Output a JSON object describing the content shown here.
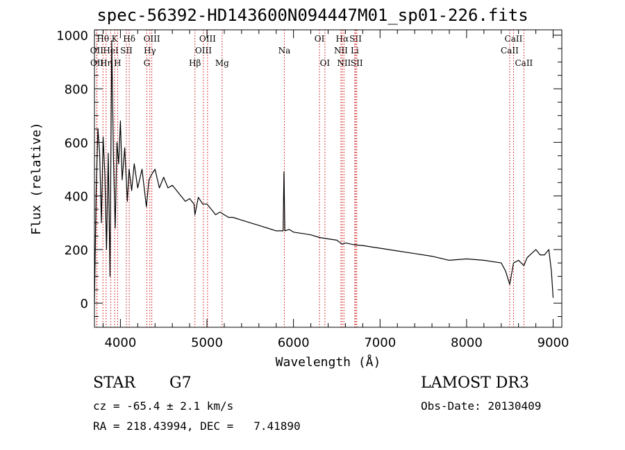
{
  "chart_data": {
    "type": "line",
    "title": "spec-56392-HD143600N094447M01_sp01-226.fits",
    "xlabel": "Wavelength (Å)",
    "ylabel": "Flux (relative)",
    "xlim": [
      3700,
      9100
    ],
    "ylim": [
      -90,
      1020
    ],
    "xticks": [
      4000,
      5000,
      6000,
      7000,
      8000,
      9000
    ],
    "yticks": [
      0,
      200,
      400,
      600,
      800,
      1000
    ],
    "series": [
      {
        "name": "flux",
        "x": [
          3700,
          3720,
          3740,
          3760,
          3780,
          3800,
          3820,
          3840,
          3860,
          3880,
          3900,
          3920,
          3940,
          3960,
          3980,
          4000,
          4020,
          4050,
          4080,
          4100,
          4130,
          4160,
          4200,
          4250,
          4300,
          4330,
          4360,
          4400,
          4450,
          4500,
          4550,
          4600,
          4650,
          4700,
          4750,
          4800,
          4850,
          4861,
          4900,
          4950,
          5000,
          5050,
          5100,
          5150,
          5200,
          5250,
          5300,
          5400,
          5500,
          5600,
          5700,
          5800,
          5880,
          5890,
          5900,
          5950,
          6000,
          6100,
          6200,
          6300,
          6400,
          6500,
          6563,
          6600,
          6700,
          6800,
          6900,
          7000,
          7200,
          7400,
          7600,
          7800,
          8000,
          8200,
          8400,
          8450,
          8498,
          8542,
          8600,
          8662,
          8700,
          8800,
          8850,
          8900,
          8950,
          8980,
          9000
        ],
        "values": [
          0,
          420,
          650,
          560,
          300,
          620,
          480,
          200,
          560,
          100,
          980,
          540,
          280,
          600,
          520,
          680,
          460,
          580,
          380,
          500,
          420,
          520,
          430,
          500,
          360,
          460,
          480,
          500,
          430,
          470,
          430,
          440,
          420,
          400,
          380,
          390,
          370,
          330,
          395,
          370,
          370,
          350,
          330,
          340,
          330,
          320,
          320,
          310,
          300,
          290,
          280,
          270,
          270,
          490,
          270,
          275,
          265,
          260,
          255,
          245,
          240,
          235,
          220,
          225,
          218,
          215,
          210,
          205,
          195,
          185,
          175,
          160,
          165,
          160,
          150,
          120,
          70,
          150,
          160,
          140,
          170,
          200,
          180,
          180,
          200,
          120,
          20
        ]
      }
    ],
    "lines": [
      {
        "label": "Hθ",
        "x": 3798,
        "row": 1
      },
      {
        "label": "OII",
        "x": 3727,
        "row": 2
      },
      {
        "label": "OII",
        "x": 3729,
        "row": 3
      },
      {
        "label": "Hη",
        "x": 3835,
        "row": 3
      },
      {
        "label": "HeI",
        "x": 3889,
        "row": 2
      },
      {
        "label": "K",
        "x": 3934,
        "row": 1
      },
      {
        "label": "H",
        "x": 3968,
        "row": 3
      },
      {
        "label": "SII",
        "x": 4069,
        "row": 2
      },
      {
        "label": "Hδ",
        "x": 4102,
        "row": 1
      },
      {
        "label": "OIII",
        "x": 4363,
        "row": 1
      },
      {
        "label": "Hγ",
        "x": 4340,
        "row": 2
      },
      {
        "label": "G",
        "x": 4305,
        "row": 3
      },
      {
        "label": "Hβ",
        "x": 4861,
        "row": 3
      },
      {
        "label": "OIII",
        "x": 5007,
        "row": 1
      },
      {
        "label": "OIII",
        "x": 4959,
        "row": 2
      },
      {
        "label": "Mg",
        "x": 5175,
        "row": 3
      },
      {
        "label": "Na",
        "x": 5894,
        "row": 2
      },
      {
        "label": "OI",
        "x": 6300,
        "row": 1
      },
      {
        "label": "OI",
        "x": 6363,
        "row": 3
      },
      {
        "label": "Hα",
        "x": 6563,
        "row": 1
      },
      {
        "label": "NII",
        "x": 6548,
        "row": 2
      },
      {
        "label": "NII",
        "x": 6583,
        "row": 3
      },
      {
        "label": "SII",
        "x": 6717,
        "row": 1
      },
      {
        "label": "Li",
        "x": 6708,
        "row": 2
      },
      {
        "label": "SII",
        "x": 6731,
        "row": 3
      },
      {
        "label": "CaII",
        "x": 8542,
        "row": 1
      },
      {
        "label": "CaII",
        "x": 8498,
        "row": 2
      },
      {
        "label": "CaII",
        "x": 8662,
        "row": 3
      }
    ]
  },
  "info": {
    "class": "STAR",
    "subclass": "G7",
    "survey": "LAMOST DR3",
    "cz": "cz = -65.4 ± 2.1 km/s",
    "obsdate": "Obs-Date: 20130409",
    "radec": "RA = 218.43994, DEC =   7.41890"
  },
  "colors": {
    "axis": "#000000",
    "spectrum": "#000000",
    "line_marker": "#cc0000"
  }
}
